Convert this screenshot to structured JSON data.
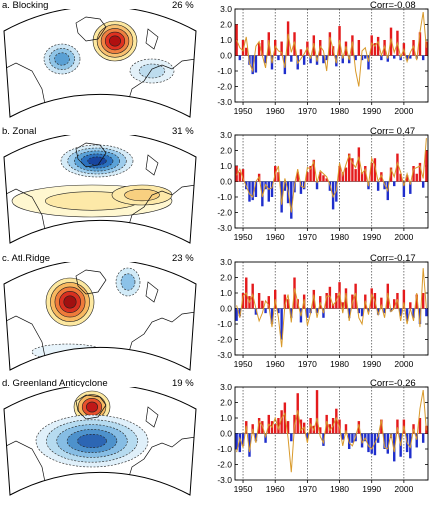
{
  "colors": {
    "positive": "#e41a1c",
    "negative": "#1f2ecc",
    "line": "#d99a2b"
  },
  "chart_data": [
    {
      "type": "bar",
      "title": "a. Blocking",
      "percent": "26 %",
      "corr": "Corr=-0.08",
      "map_style": "blocking",
      "x_start": 1948,
      "xticks": [
        "1950",
        "1960",
        "1970",
        "1980",
        "1990",
        "2000"
      ],
      "yticks": [
        "3.0",
        "2.0",
        "1.0",
        "0.0",
        "-1.0",
        "-2.0",
        "-3.0"
      ],
      "ylim": [
        -3,
        3
      ],
      "bar_values": [
        2.0,
        -0.3,
        1.0,
        0.5,
        -0.6,
        -1.2,
        -1.1,
        0.8,
        1.0,
        -0.5,
        1.5,
        -0.9,
        1.0,
        -0.3,
        0.9,
        -1.2,
        2.2,
        -0.4,
        1.5,
        -0.9,
        0.4,
        -0.6,
        0.9,
        -0.5,
        1.3,
        -0.6,
        1.0,
        -0.5,
        -0.3,
        1.5,
        0.6,
        -0.7,
        1.9,
        -0.5,
        0.9,
        -0.5,
        1.3,
        -0.3,
        1.0,
        -0.3,
        -0.2,
        -0.9,
        1.3,
        0.8,
        1.2,
        -0.3,
        1.0,
        -0.4,
        1.8,
        -0.2,
        1.6,
        -0.3,
        0.8,
        -0.3,
        -0.2,
        1.0,
        -0.2,
        1.5,
        -0.3,
        0.9
      ],
      "line_values": [
        1.0,
        0.5,
        0.3,
        1.2,
        -0.5,
        -1.0,
        0.6,
        0.9,
        0.0,
        -0.8,
        1.0,
        -0.5,
        0.6,
        0.3,
        0.2,
        -0.8,
        1.4,
        0.2,
        0.9,
        -0.5,
        -0.2,
        0.1,
        0.5,
        -0.2,
        0.8,
        -0.4,
        0.6,
        0.3,
        -1.0,
        1.2,
        0.4,
        -0.5,
        1.0,
        -0.2,
        0.6,
        -0.3,
        0.9,
        -1.0,
        -2.0,
        0.3,
        0.5,
        -0.4,
        0.8,
        0.6,
        0.9,
        0.0,
        0.6,
        -0.2,
        1.1,
        0.2,
        0.8,
        -0.1,
        0.4,
        -0.4,
        0.2,
        0.6,
        -0.3,
        1.5,
        2.8,
        0.5
      ]
    },
    {
      "type": "bar",
      "title": "b. Zonal",
      "percent": "31 %",
      "corr": "Corr= 0.47",
      "map_style": "zonal",
      "x_start": 1948,
      "xticks": [
        "1950",
        "1960",
        "1970",
        "1980",
        "1990",
        "2000"
      ],
      "yticks": [
        "3.0",
        "2.0",
        "1.0",
        "0.0",
        "-1.0",
        "-2.0",
        "-3.0"
      ],
      "ylim": [
        -3,
        3
      ],
      "bar_values": [
        1.0,
        0.6,
        0.8,
        -0.5,
        -1.3,
        -1.2,
        -1.0,
        0.5,
        -1.6,
        -0.5,
        -1.3,
        -1.0,
        1.0,
        0.6,
        -2.0,
        -0.6,
        -1.4,
        -2.4,
        -0.7,
        0.6,
        -0.8,
        -0.5,
        0.6,
        1.0,
        1.4,
        -0.5,
        0.6,
        0.4,
        0.2,
        -0.6,
        -1.8,
        -1.3,
        1.0,
        0.6,
        0.9,
        1.8,
        1.5,
        0.8,
        2.2,
        0.6,
        1.0,
        -0.5,
        1.2,
        1.5,
        -0.6,
        0.6,
        -0.5,
        -1.2,
        0.9,
        -0.3,
        1.8,
        0.5,
        -1.0,
        0.4,
        -0.8,
        1.0,
        0.5,
        1.2,
        -0.4,
        2.0
      ],
      "line_values": [
        0.4,
        0.8,
        0.2,
        -0.3,
        -0.8,
        -1.0,
        0.0,
        0.3,
        -1.0,
        -0.2,
        -0.5,
        -0.4,
        0.5,
        1.0,
        -1.5,
        0.2,
        -0.6,
        -2.0,
        -0.2,
        0.8,
        -0.3,
        -0.4,
        0.9,
        0.8,
        1.3,
        -0.1,
        0.7,
        0.5,
        0.3,
        -0.2,
        -1.0,
        -0.6,
        1.2,
        0.4,
        1.1,
        1.7,
        1.2,
        0.9,
        1.6,
        0.5,
        0.8,
        -0.3,
        1.5,
        1.0,
        0.0,
        0.4,
        -0.2,
        -0.6,
        0.8,
        0.3,
        1.2,
        0.6,
        -0.3,
        0.5,
        -0.2,
        0.8,
        0.9,
        1.0,
        0.2,
        2.8
      ]
    },
    {
      "type": "bar",
      "title": "c. Atl.Ridge",
      "percent": "23 %",
      "corr": "Corr=-0.17",
      "map_style": "ridge",
      "x_start": 1948,
      "xticks": [
        "1950",
        "1960",
        "1970",
        "1980",
        "1990",
        "2000"
      ],
      "yticks": [
        "3.0",
        "2.0",
        "1.0",
        "0.0",
        "-1.0",
        "-2.0",
        "-3.0"
      ],
      "ylim": [
        -3,
        3
      ],
      "bar_values": [
        -0.8,
        -0.5,
        1.0,
        2.0,
        0.8,
        1.6,
        -0.4,
        1.0,
        0.5,
        -0.3,
        0.8,
        -1.0,
        1.2,
        -0.3,
        -2.0,
        0.9,
        0.6,
        -0.6,
        2.0,
        0.6,
        -0.9,
        0.9,
        -0.6,
        -0.3,
        1.2,
        -0.3,
        0.8,
        -0.6,
        1.0,
        1.4,
        0.3,
        1.0,
        1.7,
        0.4,
        1.3,
        -0.6,
        0.9,
        1.6,
        -0.3,
        -0.5,
        0.9,
        -0.2,
        1.3,
        1.0,
        -0.4,
        0.7,
        -0.3,
        1.6,
        -0.2,
        0.6,
        1.0,
        -0.5,
        1.2,
        -0.8,
        0.4,
        -0.6,
        0.9,
        -1.0,
        1.0,
        -0.5
      ],
      "line_values": [
        0.2,
        -0.6,
        0.8,
        1.0,
        0.4,
        0.9,
        0.0,
        -0.8,
        -0.3,
        0.5,
        0.2,
        -1.2,
        0.6,
        -0.6,
        -2.5,
        0.2,
        0.9,
        -0.9,
        1.3,
        0.4,
        -0.5,
        0.6,
        -1.1,
        -0.3,
        0.9,
        -0.6,
        0.4,
        -0.3,
        0.8,
        0.8,
        0.2,
        0.5,
        1.0,
        -0.3,
        1.0,
        -0.8,
        0.4,
        1.0,
        -0.6,
        -1.0,
        0.5,
        -0.4,
        0.9,
        0.5,
        -0.4,
        0.2,
        -0.6,
        1.0,
        -0.2,
        0.0,
        0.6,
        -0.8,
        0.4,
        -1.0,
        0.0,
        -0.8,
        1.0,
        -1.2,
        2.6,
        0.0
      ]
    },
    {
      "type": "bar",
      "title": "d. Greenland Anticyclone",
      "percent": "19 %",
      "corr": "Corr=-0.26",
      "map_style": "greenland",
      "x_start": 1948,
      "xticks": [
        "1950",
        "1960",
        "1970",
        "1980",
        "1990",
        "2000"
      ],
      "yticks": [
        "3.0",
        "2.0",
        "1.0",
        "0.0",
        "-1.0",
        "-2.0",
        "-3.0"
      ],
      "ylim": [
        -3,
        3
      ],
      "bar_values": [
        -1.0,
        -1.2,
        -0.8,
        0.8,
        -1.5,
        0.6,
        -0.5,
        1.0,
        0.8,
        -0.6,
        1.2,
        0.8,
        0.6,
        1.0,
        1.5,
        2.0,
        0.8,
        -0.5,
        1.2,
        2.6,
        0.9,
        0.7,
        -0.3,
        1.0,
        0.5,
        2.8,
        0.4,
        -0.8,
        1.2,
        0.6,
        1.0,
        1.6,
        0.9,
        -0.4,
        0.6,
        -1.0,
        -0.6,
        -0.5,
        0.8,
        -0.9,
        -0.5,
        -1.2,
        -1.3,
        -1.4,
        -0.6,
        0.9,
        -1.0,
        -1.3,
        -0.3,
        -1.8,
        0.9,
        -1.5,
        0.9,
        -1.2,
        -1.6,
        0.6,
        -0.9,
        1.0,
        -0.6,
        0.5
      ],
      "line_values": [
        -1.2,
        -0.3,
        -0.9,
        0.5,
        -1.2,
        0.3,
        -0.6,
        0.8,
        0.5,
        -0.2,
        0.6,
        0.4,
        1.0,
        0.3,
        1.0,
        1.3,
        -0.3,
        -2.5,
        0.5,
        1.5,
        0.2,
        0.4,
        -0.6,
        0.6,
        0.2,
        1.0,
        -0.2,
        -0.6,
        0.8,
        0.2,
        0.5,
        1.0,
        0.4,
        -0.8,
        0.2,
        -0.6,
        -0.8,
        -0.2,
        0.6,
        -0.6,
        -0.3,
        -0.8,
        -1.0,
        -0.6,
        -0.2,
        0.9,
        -0.9,
        -1.0,
        0.0,
        -1.2,
        0.4,
        -0.8,
        0.5,
        -0.6,
        -0.9,
        0.3,
        -0.4,
        1.6,
        2.8,
        0.2
      ]
    }
  ]
}
